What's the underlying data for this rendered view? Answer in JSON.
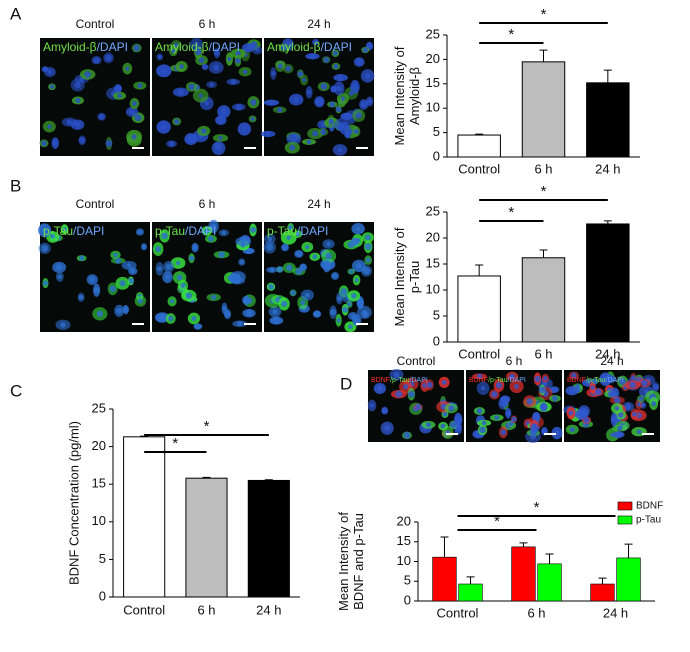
{
  "chart_data": [
    {
      "type": "bar",
      "panel": "A",
      "image_labels": [
        "Control",
        "6 h",
        "24 h"
      ],
      "stain_parts": [
        {
          "text": "Amyloid-β",
          "color": "#6fe04a"
        },
        {
          "text": "/DAPI",
          "color": "#6fa8ff"
        }
      ],
      "ylabel": [
        "Mean Intensity of",
        "Amyloid-β"
      ],
      "categories": [
        "Control",
        "6 h",
        "24 h"
      ],
      "values": [
        4.5,
        19.5,
        15.2
      ],
      "errors": [
        0.2,
        2.4,
        2.6
      ],
      "colors": [
        "#ffffff",
        "#bdbdbd",
        "#000000"
      ],
      "ylim": [
        0,
        25
      ],
      "yticks": [
        0,
        5,
        10,
        15,
        20,
        25
      ],
      "significance": [
        {
          "between": [
            0,
            1
          ],
          "label": "*"
        },
        {
          "between": [
            0,
            2
          ],
          "label": "*"
        }
      ]
    },
    {
      "type": "bar",
      "panel": "B",
      "image_labels": [
        "Control",
        "6 h",
        "24 h"
      ],
      "stain_parts": [
        {
          "text": "p-Tau",
          "color": "#6fe04a"
        },
        {
          "text": "/DAPI",
          "color": "#6fa8ff"
        }
      ],
      "ylabel": [
        "Mean Intensity of",
        "p-Tau"
      ],
      "categories": [
        "Control",
        "6 h",
        "24 h"
      ],
      "values": [
        12.7,
        16.2,
        22.7
      ],
      "errors": [
        2.1,
        1.5,
        0.6
      ],
      "colors": [
        "#ffffff",
        "#bdbdbd",
        "#000000"
      ],
      "ylim": [
        0,
        25
      ],
      "yticks": [
        0,
        5,
        10,
        15,
        20,
        25
      ],
      "significance": [
        {
          "between": [
            0,
            1
          ],
          "label": "*"
        },
        {
          "between": [
            0,
            2
          ],
          "label": "*"
        }
      ]
    },
    {
      "type": "bar",
      "panel": "C",
      "ylabel": [
        "BDNF Concentration (pg/ml)"
      ],
      "categories": [
        "Control",
        "6 h",
        "24 h"
      ],
      "values": [
        21.3,
        15.8,
        15.5
      ],
      "errors": [
        0.1,
        0.1,
        0.1
      ],
      "colors": [
        "#ffffff",
        "#bdbdbd",
        "#000000"
      ],
      "ylim": [
        0,
        25
      ],
      "yticks": [
        0,
        5,
        10,
        15,
        20,
        25
      ],
      "significance": [
        {
          "between": [
            0,
            1
          ],
          "label": "*"
        },
        {
          "between": [
            0,
            2
          ],
          "label": "*"
        }
      ]
    },
    {
      "type": "grouped_bar",
      "panel": "D",
      "image_labels": [
        "Control",
        "6 h",
        "24 h"
      ],
      "stain_parts": [
        {
          "text": "BDNF",
          "color": "#ff3030"
        },
        {
          "text": "/p-Tau",
          "color": "#6fe04a"
        },
        {
          "text": "/DAPI",
          "color": "#6fa8ff"
        }
      ],
      "ylabel": [
        "Mean Intensity of",
        "BDNF and p-Tau"
      ],
      "categories": [
        "Control",
        "6 h",
        "24 h"
      ],
      "series": [
        {
          "name": "BDNF",
          "color": "#ff0000",
          "values": [
            11.1,
            13.7,
            4.3
          ],
          "errors": [
            5.1,
            1.0,
            1.5
          ]
        },
        {
          "name": "p-Tau",
          "color": "#00ff00",
          "values": [
            4.3,
            9.4,
            10.9
          ],
          "errors": [
            1.8,
            2.5,
            3.5
          ]
        }
      ],
      "ylim": [
        0,
        20
      ],
      "yticks": [
        0,
        5,
        10,
        15,
        20
      ],
      "legend": "upper-right",
      "significance": [
        {
          "between": [
            0,
            1
          ],
          "label": "*"
        },
        {
          "between": [
            0,
            2
          ],
          "label": "*"
        }
      ]
    }
  ]
}
